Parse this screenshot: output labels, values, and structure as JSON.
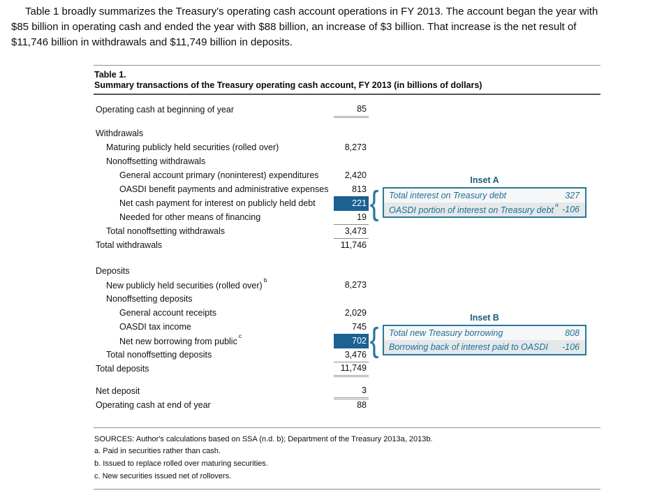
{
  "intro": {
    "lines": [
      "Table 1 broadly summarizes the Treasury's operating cash account operations in FY 2013. The account began the year with",
      "$85 billion in operating cash and ended the year with $88 billion, an increase of $3 billion. That increase is the net result of",
      "$11,746 billion in withdrawals and $11,749 billion in deposits."
    ]
  },
  "table": {
    "title": "Table 1.",
    "subtitle": "Summary transactions of the Treasury operating cash account, FY 2013 (in billions of dollars)",
    "rows": [
      {
        "label": "Operating cash at beginning of year",
        "value": "85"
      },
      {
        "label": "Withdrawals",
        "value": ""
      },
      {
        "label": "Maturing publicly held securities (rolled over)",
        "value": "8,273"
      },
      {
        "label": "Nonoffsetting withdrawals",
        "value": ""
      },
      {
        "label": "General account primary (noninterest) expenditures",
        "value": "2,420"
      },
      {
        "label": "OASDI benefit payments and administrative expenses",
        "value": "813"
      },
      {
        "label": "Net cash payment for interest on publicly held debt",
        "value": "221"
      },
      {
        "label": "Needed for other means of financing",
        "value": "19"
      },
      {
        "label": "Total nonoffsetting withdrawals",
        "value": "3,473"
      },
      {
        "label": "Total withdrawals",
        "value": "11,746"
      },
      {
        "label": "Deposits",
        "value": ""
      },
      {
        "label": "New publicly held securities (rolled over)",
        "sup": "b",
        "value": "8,273"
      },
      {
        "label": "Nonoffsetting deposits",
        "value": ""
      },
      {
        "label": "General account receipts",
        "value": "2,029"
      },
      {
        "label": "OASDI tax income",
        "value": "745"
      },
      {
        "label": "Net new borrowing from public",
        "sup": "c",
        "value": "702"
      },
      {
        "label": "Total nonoffsetting deposits",
        "value": "3,476"
      },
      {
        "label": "Total deposits",
        "value": "11,749"
      },
      {
        "label": "Net deposit",
        "value": "3"
      },
      {
        "label": "Operating cash at end of year",
        "value": "88"
      }
    ],
    "inset_a": {
      "title": "Inset A",
      "brace_glyph": "{",
      "rows": [
        {
          "label": "Total interest on Treasury debt",
          "value": "327"
        },
        {
          "label": "OASDI portion of interest on Treasury debt",
          "sup": "a",
          "value": "-106"
        }
      ]
    },
    "inset_b": {
      "title": "Inset B",
      "brace_glyph": "{",
      "rows": [
        {
          "label": "Total new Treasury borrowing",
          "value": "808"
        },
        {
          "label": "Borrowing back of interest paid to OASDI",
          "value": "-106"
        }
      ]
    },
    "footer": {
      "sources": "SOURCES: Author's calculations based on SSA (n.d. b); Department of the Treasury 2013a, 2013b.",
      "notes": [
        "a. Paid in securities rather than cash.",
        "b. Issued to replace rolled over maturing securities.",
        "c. New securities issued net of rollovers."
      ]
    }
  },
  "colors": {
    "highlight": "#1c6190",
    "inset-border": "#2a7898",
    "inset-text": "#1f6f94",
    "inset-title": "#1d5b79",
    "brace": "#2878a0"
  }
}
